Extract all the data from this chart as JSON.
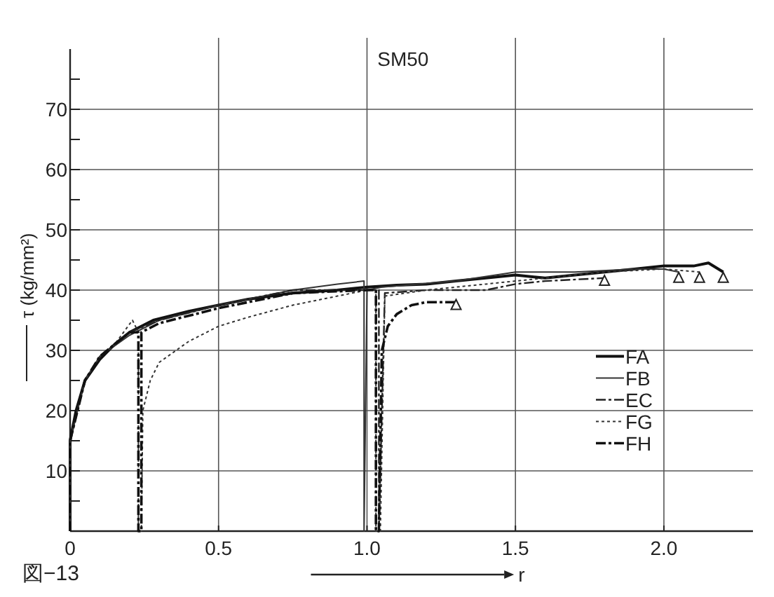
{
  "chart_data": {
    "type": "line",
    "title": "SM50",
    "xlabel": "r",
    "ylabel": "τ (kg/mm²)",
    "annotations": [
      "図−13"
    ],
    "xlim": [
      0,
      2.3
    ],
    "ylim": [
      0,
      80
    ],
    "xticks": [
      0,
      0.5,
      {
        "value": 1,
        "label": "1.0"
      },
      1.5,
      {
        "value": 2,
        "label": "2.0"
      }
    ],
    "yticks": [
      {
        "value": 5,
        "label": null
      },
      10,
      {
        "value": 15,
        "label": null
      },
      20,
      {
        "value": 25,
        "label": null
      },
      30,
      {
        "value": 35,
        "label": null
      },
      40,
      {
        "value": 45,
        "label": null
      },
      50,
      {
        "value": 55,
        "label": null
      },
      60,
      {
        "value": 65,
        "label": null
      },
      70,
      {
        "value": 75,
        "label": null
      }
    ],
    "grid": true,
    "legend": "bottom right",
    "series": [
      {
        "name": "FA",
        "line_style": "solid",
        "color": "#111111",
        "x": [
          0,
          0,
          0.02,
          0.05,
          0.1,
          0.15,
          0.2,
          0.28,
          0.4,
          0.5,
          0.6,
          0.75,
          0.9,
          1.0,
          1.1,
          1.2,
          1.3,
          1.4,
          1.5,
          1.6,
          1.7,
          1.8,
          1.9,
          2.0,
          2.1,
          2.15,
          2.2
        ],
        "values": [
          0,
          15,
          20,
          25,
          28.5,
          31,
          33,
          35,
          36.5,
          37.5,
          38.5,
          39.5,
          40,
          40.5,
          40.8,
          41,
          41.5,
          42,
          42.5,
          42,
          42.5,
          43,
          43.5,
          44,
          44,
          44.5,
          43
        ]
      },
      {
        "name": "FB",
        "line_style": "solid",
        "color": "#333333",
        "x": [
          0,
          0,
          0.05,
          0.1,
          0.2,
          0.3,
          0.5,
          0.75,
          0.9,
          0.99,
          0.99,
          1.0,
          1.05,
          1.3,
          1.5,
          1.7,
          1.9,
          2.0,
          2.05
        ],
        "values": [
          0,
          15,
          25,
          29,
          32.5,
          35,
          37.5,
          40,
          41,
          41.5,
          0,
          40,
          40.5,
          41.5,
          43,
          43,
          43.5,
          43.5,
          43
        ]
      },
      {
        "name": "EC",
        "line_style": "dashed",
        "color": "#222222",
        "x": [
          0,
          0,
          0.05,
          0.1,
          0.2,
          0.3,
          0.5,
          0.75,
          1.0,
          1.04,
          1.04,
          1.06,
          1.2,
          1.4,
          1.5,
          1.6,
          1.8
        ],
        "values": [
          0,
          15,
          25,
          29,
          33,
          35,
          37.5,
          40,
          40,
          40,
          0,
          39.5,
          40,
          40,
          41,
          41.5,
          42
        ]
      },
      {
        "name": "FG",
        "line_style": "dotted",
        "color": "#333333",
        "x": [
          0,
          0,
          0.05,
          0.1,
          0.15,
          0.21,
          0.23,
          0.23,
          0.24,
          0.245,
          0.27,
          0.3,
          0.4,
          0.5,
          0.6,
          0.75,
          0.9,
          1.0,
          1.03,
          1.03,
          1.045,
          1.06,
          1.2,
          1.4,
          1.6,
          1.8,
          2.0,
          2.12
        ],
        "values": [
          0,
          15,
          25,
          29,
          31,
          35,
          33,
          0,
          0,
          20,
          25,
          28,
          31.5,
          34,
          35.5,
          37.5,
          39,
          40,
          40,
          0,
          0,
          39,
          40,
          41,
          42,
          43,
          43.5,
          43
        ]
      },
      {
        "name": "FH",
        "line_style": "dashed",
        "color": "#111111",
        "x": [
          0,
          0,
          0.05,
          0.1,
          0.2,
          0.23,
          0.23,
          0.24,
          0.24,
          0.3,
          0.5,
          0.75,
          1.0,
          1.03,
          1.03,
          1.04,
          1.05,
          1.07,
          1.1,
          1.15,
          1.2,
          1.3
        ],
        "values": [
          0,
          15,
          25,
          29,
          33,
          33,
          0,
          0,
          33,
          34.5,
          37,
          39.5,
          40,
          40,
          0,
          0,
          30,
          34,
          36,
          37.5,
          38,
          38
        ]
      },
      {
        "type": "scatter",
        "marker": "triangle",
        "color": "#222222",
        "x": [
          1.3,
          1.8,
          2.05,
          2.12,
          2.2
        ],
        "values": [
          37.5,
          41.5,
          42,
          42,
          42
        ]
      }
    ]
  }
}
